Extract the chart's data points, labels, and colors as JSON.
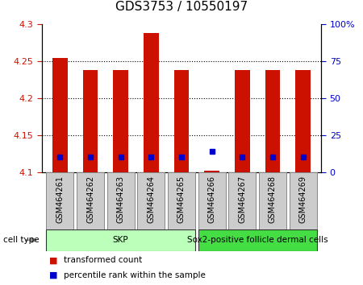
{
  "title": "GDS3753 / 10550197",
  "samples": [
    "GSM464261",
    "GSM464262",
    "GSM464263",
    "GSM464264",
    "GSM464265",
    "GSM464266",
    "GSM464267",
    "GSM464268",
    "GSM464269"
  ],
  "red_values": [
    4.255,
    4.238,
    4.238,
    4.288,
    4.238,
    4.102,
    4.238,
    4.238,
    4.238
  ],
  "blue_values": [
    4.121,
    4.121,
    4.121,
    4.121,
    4.121,
    4.128,
    4.121,
    4.121,
    4.121
  ],
  "ylim_left": [
    4.1,
    4.3
  ],
  "ylim_right": [
    0,
    100
  ],
  "left_ticks": [
    4.1,
    4.15,
    4.2,
    4.25,
    4.3
  ],
  "right_ticks": [
    0,
    25,
    50,
    75,
    100
  ],
  "left_tick_labels": [
    "4.1",
    "4.15",
    "4.2",
    "4.25",
    "4.3"
  ],
  "right_tick_labels": [
    "0",
    "25",
    "50",
    "75",
    "100%"
  ],
  "bar_bottom": 4.1,
  "bar_color": "#cc1100",
  "blue_color": "#0000cc",
  "cell_groups": [
    {
      "label": "SKP",
      "indices": [
        0,
        1,
        2,
        3,
        4
      ],
      "color": "#bbffbb"
    },
    {
      "label": "Sox2-positive follicle dermal cells",
      "indices": [
        5,
        6,
        7,
        8
      ],
      "color": "#44dd44"
    }
  ],
  "cell_type_label": "cell type",
  "legend_red": "transformed count",
  "legend_blue": "percentile rank within the sample",
  "bar_width": 0.5,
  "tick_label_color_left": "#cc1100",
  "tick_label_color_right": "#0000cc",
  "grid_ticks": [
    4.15,
    4.2,
    4.25
  ],
  "title_fontsize": 11,
  "tick_fontsize": 8,
  "sample_fontsize": 7,
  "cell_fontsize": 7.5,
  "legend_fontsize": 7.5
}
